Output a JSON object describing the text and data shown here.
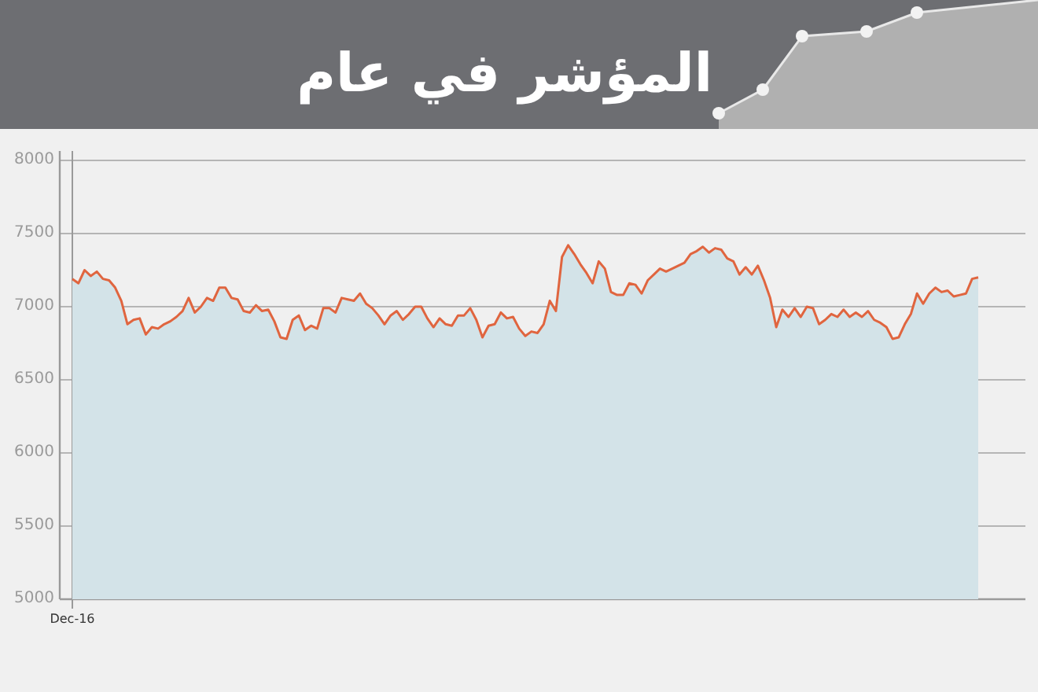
{
  "chart_data": {
    "type": "area",
    "title": "المؤشر في عام",
    "categories": [
      "Dec-16",
      null,
      null,
      null,
      null,
      null,
      null,
      null,
      null,
      null,
      null,
      null,
      null,
      null,
      null,
      null,
      null,
      null,
      null,
      null,
      null,
      null,
      null,
      null,
      null,
      null,
      null,
      null,
      null,
      null,
      null,
      null,
      null,
      null,
      null,
      null,
      null,
      null,
      null,
      null,
      null,
      null,
      null,
      null,
      null,
      null,
      null,
      null,
      null,
      null,
      null,
      null,
      null,
      null,
      null,
      null,
      null,
      null,
      null,
      null,
      null,
      null,
      null,
      null,
      null,
      null,
      null,
      null,
      null,
      null,
      null,
      null,
      null,
      null,
      null,
      null,
      null,
      null,
      null,
      null,
      null,
      null,
      null,
      null,
      null,
      null,
      null,
      null,
      null,
      null,
      null,
      null,
      null,
      null,
      null,
      null,
      null,
      null,
      null,
      null,
      null,
      null,
      null,
      null,
      null,
      null,
      null,
      null,
      null,
      null,
      null,
      null,
      null,
      null,
      null,
      null,
      null,
      null,
      null,
      null,
      null,
      null,
      null,
      null,
      null,
      null,
      null,
      null,
      null,
      null,
      null,
      null,
      null,
      null,
      null,
      null,
      null,
      null,
      null,
      null,
      null,
      null,
      null,
      null,
      null,
      null,
      null,
      null,
      null
    ],
    "series": [
      {
        "color": "#e0653f",
        "values": [
          7190,
          7160,
          7250,
          7210,
          7240,
          7190,
          7180,
          7130,
          7040,
          6880,
          6910,
          6920,
          6810,
          6860,
          6850,
          6880,
          6900,
          6930,
          6970,
          7060,
          6960,
          7000,
          7060,
          7040,
          7130,
          7130,
          7060,
          7050,
          6970,
          6960,
          7010,
          6970,
          6980,
          6900,
          6790,
          6780,
          6910,
          6940,
          6840,
          6870,
          6850,
          6990,
          6990,
          6960,
          7060,
          7050,
          7040,
          7090,
          7020,
          6990,
          6940,
          6880,
          6940,
          6970,
          6910,
          6950,
          7000,
          7000,
          6920,
          6860,
          6920,
          6880,
          6870,
          6940,
          6940,
          6990,
          6910,
          6790,
          6870,
          6880,
          6960,
          6920,
          6930,
          6850,
          6800,
          6830,
          6820,
          6880,
          7040,
          6970,
          7340,
          7420,
          7360,
          7290,
          7230,
          7160,
          7310,
          7260,
          7100,
          7080,
          7080,
          7160,
          7150,
          7090,
          7180,
          7220,
          7260,
          7240,
          7260,
          7280,
          7300,
          7360,
          7380,
          7410,
          7370,
          7400,
          7390,
          7330,
          7310,
          7220,
          7270,
          7220,
          7280,
          7180,
          7060,
          6860,
          6980,
          6930,
          6990,
          6930,
          7000,
          6990,
          6880,
          6910,
          6950,
          6930,
          6980,
          6930,
          6960,
          6930,
          6970,
          6910,
          6890,
          6860,
          6780,
          6790,
          6880,
          6950,
          7090,
          7020,
          7090,
          7130,
          7100,
          7110,
          7070,
          7080,
          7090,
          7190,
          7200
        ]
      }
    ],
    "ylim": [
      5000,
      8000
    ],
    "yticks": [
      5000,
      5500,
      6000,
      6500,
      7000,
      7500,
      8000
    ],
    "grid": "y"
  }
}
